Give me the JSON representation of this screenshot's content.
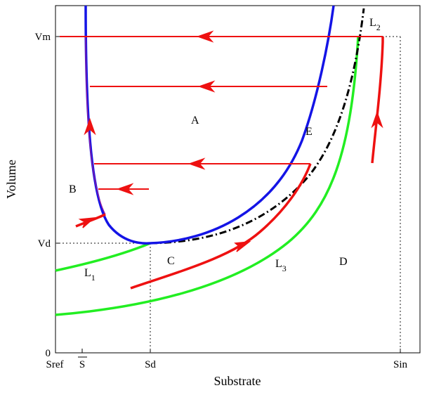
{
  "axes": {
    "xlabel": "Substrate",
    "ylabel": "Volume",
    "xticks": [
      "Sref",
      "S",
      "Sd",
      "Sin"
    ],
    "yticks": [
      "Vm",
      "Vd",
      "0"
    ]
  },
  "regions": {
    "A": "A",
    "B": "B",
    "C": "C",
    "D": "D",
    "E": "E"
  },
  "curve_labels": {
    "L1": "L",
    "L1_sub": "1",
    "L2": "L",
    "L2_sub": "2",
    "L3": "L",
    "L3_sub": "3"
  },
  "colors": {
    "blue_curve": "#1414e6",
    "red_trajectory": "#ee1111",
    "green_curve": "#22ee22",
    "black_dashdot": "#000000"
  }
}
